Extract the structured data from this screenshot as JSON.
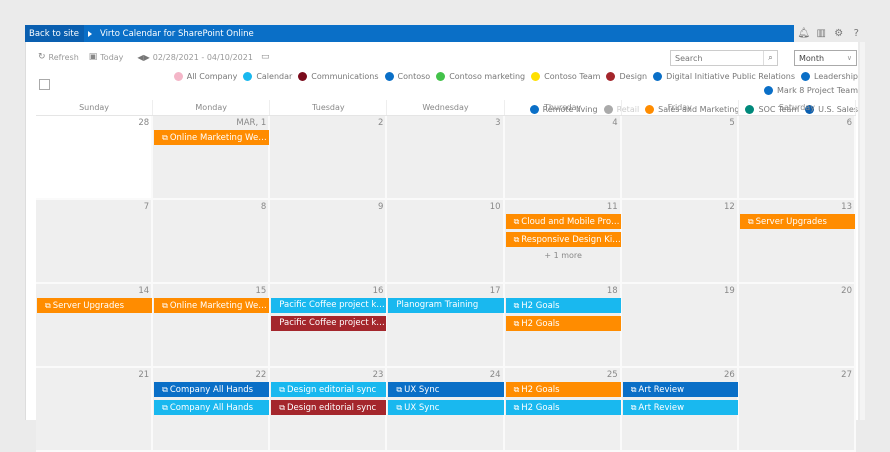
{
  "suitebar": {
    "back_label": "Back to site",
    "title": "Virto Calendar for SharePoint Online",
    "icons": [
      "bell-icon",
      "reader-icon",
      "gear-icon",
      "help-icon"
    ],
    "icon_glyphs": [
      "🔔",
      "📖",
      "⚙",
      "?"
    ]
  },
  "toolbar": {
    "refresh_label": "Refresh",
    "today_label": "Today",
    "date_range": "02/28/2021 - 04/10/2021",
    "search_placeholder": "Search",
    "view_selected": "Month"
  },
  "legend": [
    {
      "label": "All Company",
      "color": "#f4b6c8"
    },
    {
      "label": "Calendar",
      "color": "#19b8ef"
    },
    {
      "label": "Communications",
      "color": "#7a0b1c"
    },
    {
      "label": "Contoso",
      "color": "#0a6fc7"
    },
    {
      "label": "Contoso marketing",
      "color": "#43c24a"
    },
    {
      "label": "Contoso Team",
      "color": "#ffe000"
    },
    {
      "label": "Design",
      "color": "#a4262c"
    },
    {
      "label": "Digital Initiative Public Relations",
      "color": "#0a6fc7"
    },
    {
      "label": "Leadership",
      "color": "#0a6fc7"
    },
    {
      "label": "Mark 8 Project Team",
      "color": "#0a6fc7"
    },
    {
      "label": "Remote living",
      "color": "#0a6fc7"
    },
    {
      "label": "Retail",
      "color": "#aaaaaa",
      "disabled": true
    },
    {
      "label": "Sales and Marketing",
      "color": "#ff8c00"
    },
    {
      "label": "SOC Team",
      "color": "#00897b"
    },
    {
      "label": "U.S. Sales",
      "color": "#0a5fb0"
    }
  ],
  "days_of_week": [
    "Sunday",
    "Monday",
    "Tuesday",
    "Wednesday",
    "Thursday",
    "Friday",
    "Saturday"
  ],
  "colors": {
    "orange": "#ff8c00",
    "cyan": "#19b8ef",
    "blue": "#0a6fc7",
    "red": "#a4262c"
  },
  "weeks": [
    {
      "days": [
        "28",
        "MAR, 1",
        "2",
        "3",
        "4",
        "5",
        "6"
      ],
      "white": [
        0
      ],
      "events": [
        {
          "col": 1,
          "row": 0,
          "title": "Online Marketing Wee...",
          "color": "#ff8c00",
          "icon": true
        }
      ]
    },
    {
      "days": [
        "7",
        "8",
        "9",
        "10",
        "11",
        "12",
        "13"
      ],
      "white": [],
      "events": [
        {
          "col": 4,
          "row": 0,
          "title": "Cloud and Mobile Prof...",
          "color": "#ff8c00",
          "icon": true
        },
        {
          "col": 4,
          "row": 1,
          "title": "Responsive Design Kic...",
          "color": "#ff8c00",
          "icon": true
        },
        {
          "col": 6,
          "row": 0,
          "title": "Server Upgrades",
          "color": "#ff8c00",
          "icon": true
        }
      ],
      "more": [
        {
          "col": 4,
          "label": "+ 1 more"
        }
      ]
    },
    {
      "days": [
        "14",
        "15",
        "16",
        "17",
        "18",
        "19",
        "20"
      ],
      "white": [],
      "events": [
        {
          "col": 0,
          "row": 0,
          "title": "Server Upgrades",
          "color": "#ff8c00",
          "icon": true
        },
        {
          "col": 1,
          "row": 0,
          "title": "Online Marketing Wee...",
          "color": "#ff8c00",
          "icon": true
        },
        {
          "col": 2,
          "row": 0,
          "title": "Pacific Coffee project kick...",
          "color": "#19b8ef",
          "icon": false
        },
        {
          "col": 2,
          "row": 1,
          "title": "Pacific Coffee project kick...",
          "color": "#a4262c",
          "icon": false
        },
        {
          "col": 3,
          "row": 0,
          "title": "Planogram Training",
          "color": "#19b8ef",
          "icon": false
        },
        {
          "col": 4,
          "row": 0,
          "title": "H2 Goals",
          "color": "#19b8ef",
          "icon": true
        },
        {
          "col": 4,
          "row": 1,
          "title": "H2 Goals",
          "color": "#ff8c00",
          "icon": true
        }
      ]
    },
    {
      "days": [
        "21",
        "22",
        "23",
        "24",
        "25",
        "26",
        "27"
      ],
      "white": [],
      "events": [
        {
          "col": 1,
          "row": 0,
          "title": "Company All Hands",
          "color": "#0a6fc7",
          "icon": true
        },
        {
          "col": 1,
          "row": 1,
          "title": "Company All Hands",
          "color": "#19b8ef",
          "icon": true
        },
        {
          "col": 2,
          "row": 0,
          "title": "Design editorial sync",
          "color": "#19b8ef",
          "icon": true
        },
        {
          "col": 2,
          "row": 1,
          "title": "Design editorial sync",
          "color": "#a4262c",
          "icon": true
        },
        {
          "col": 3,
          "row": 0,
          "title": "UX Sync",
          "color": "#0a6fc7",
          "icon": true
        },
        {
          "col": 3,
          "row": 1,
          "title": "UX Sync",
          "color": "#19b8ef",
          "icon": true
        },
        {
          "col": 4,
          "row": 0,
          "title": "H2 Goals",
          "color": "#ff8c00",
          "icon": true
        },
        {
          "col": 4,
          "row": 1,
          "title": "H2 Goals",
          "color": "#19b8ef",
          "icon": true
        },
        {
          "col": 5,
          "row": 0,
          "title": "Art Review",
          "color": "#0a6fc7",
          "icon": true
        },
        {
          "col": 5,
          "row": 1,
          "title": "Art Review",
          "color": "#19b8ef",
          "icon": true
        }
      ]
    }
  ]
}
